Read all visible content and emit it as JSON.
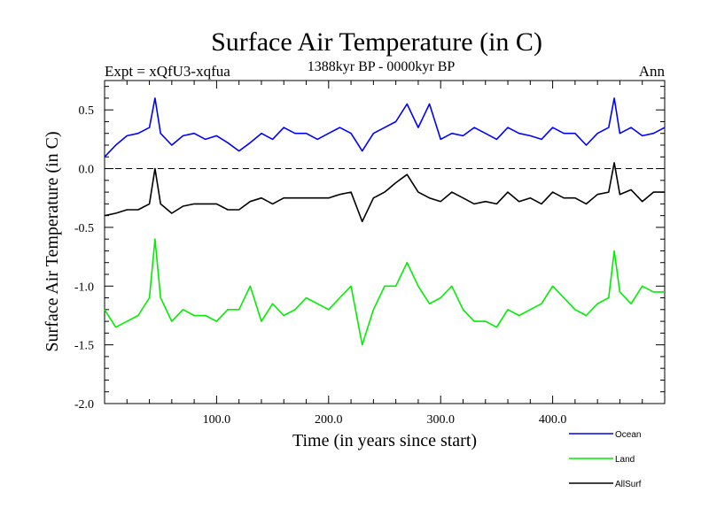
{
  "chart_data": {
    "type": "line",
    "title": "Surface Air Temperature (in C)",
    "subtitle_left": "Expt = xQfU3-xqfua",
    "subtitle_center": "1388kyr BP - 0000kyr BP",
    "subtitle_right": "Ann",
    "xlabel": "Time (in years since start)",
    "ylabel": "Surface Air Temperature (in C)",
    "xlim": [
      0,
      500
    ],
    "ylim": [
      -2.0,
      0.75
    ],
    "xticks": [
      100,
      200,
      300,
      400
    ],
    "xtick_labels": [
      "100.0",
      "200.0",
      "300.0",
      "400.0"
    ],
    "yticks": [
      0.5,
      0.0,
      -0.5,
      -1.0,
      -1.5,
      -2.0
    ],
    "ytick_labels": [
      "0.5",
      "0.0",
      "-0.5",
      "-1.0",
      "-1.5",
      "-2.0"
    ],
    "reference_line": 0.0,
    "x": [
      0,
      10,
      20,
      30,
      40,
      45,
      50,
      60,
      70,
      80,
      90,
      100,
      110,
      120,
      130,
      140,
      150,
      160,
      170,
      180,
      190,
      200,
      210,
      220,
      230,
      240,
      250,
      260,
      270,
      280,
      290,
      300,
      310,
      320,
      330,
      340,
      350,
      360,
      370,
      380,
      390,
      400,
      410,
      420,
      430,
      440,
      450,
      455,
      460,
      470,
      480,
      490,
      500
    ],
    "series": [
      {
        "name": "Ocean",
        "color": "#0000ff",
        "values": [
          0.1,
          0.2,
          0.28,
          0.3,
          0.35,
          0.6,
          0.3,
          0.2,
          0.28,
          0.3,
          0.25,
          0.28,
          0.22,
          0.15,
          0.22,
          0.3,
          0.25,
          0.35,
          0.3,
          0.3,
          0.25,
          0.3,
          0.35,
          0.3,
          0.15,
          0.3,
          0.35,
          0.4,
          0.55,
          0.35,
          0.55,
          0.25,
          0.3,
          0.28,
          0.35,
          0.3,
          0.25,
          0.35,
          0.3,
          0.28,
          0.25,
          0.35,
          0.3,
          0.3,
          0.2,
          0.3,
          0.35,
          0.6,
          0.3,
          0.35,
          0.28,
          0.3,
          0.35
        ]
      },
      {
        "name": "Land",
        "color": "#00ee00",
        "values": [
          -1.2,
          -1.35,
          -1.3,
          -1.25,
          -1.1,
          -0.6,
          -1.1,
          -1.3,
          -1.2,
          -1.25,
          -1.25,
          -1.3,
          -1.2,
          -1.2,
          -1.0,
          -1.3,
          -1.15,
          -1.25,
          -1.2,
          -1.1,
          -1.15,
          -1.2,
          -1.1,
          -1.0,
          -1.5,
          -1.2,
          -1.0,
          -1.0,
          -0.8,
          -1.0,
          -1.15,
          -1.1,
          -1.0,
          -1.2,
          -1.3,
          -1.3,
          -1.35,
          -1.2,
          -1.25,
          -1.2,
          -1.15,
          -1.0,
          -1.1,
          -1.2,
          -1.25,
          -1.15,
          -1.1,
          -0.7,
          -1.05,
          -1.15,
          -1.0,
          -1.05,
          -1.05
        ]
      },
      {
        "name": "AllSurf",
        "color": "#000000",
        "values": [
          -0.4,
          -0.38,
          -0.35,
          -0.35,
          -0.3,
          0.0,
          -0.3,
          -0.38,
          -0.32,
          -0.3,
          -0.3,
          -0.3,
          -0.35,
          -0.35,
          -0.28,
          -0.25,
          -0.3,
          -0.25,
          -0.25,
          -0.25,
          -0.25,
          -0.25,
          -0.22,
          -0.2,
          -0.45,
          -0.25,
          -0.2,
          -0.12,
          -0.05,
          -0.2,
          -0.25,
          -0.28,
          -0.2,
          -0.25,
          -0.3,
          -0.28,
          -0.3,
          -0.2,
          -0.28,
          -0.25,
          -0.3,
          -0.2,
          -0.25,
          -0.25,
          -0.3,
          -0.22,
          -0.2,
          0.05,
          -0.22,
          -0.18,
          -0.28,
          -0.2,
          -0.2
        ]
      }
    ],
    "legend_position": "bottom-right"
  }
}
